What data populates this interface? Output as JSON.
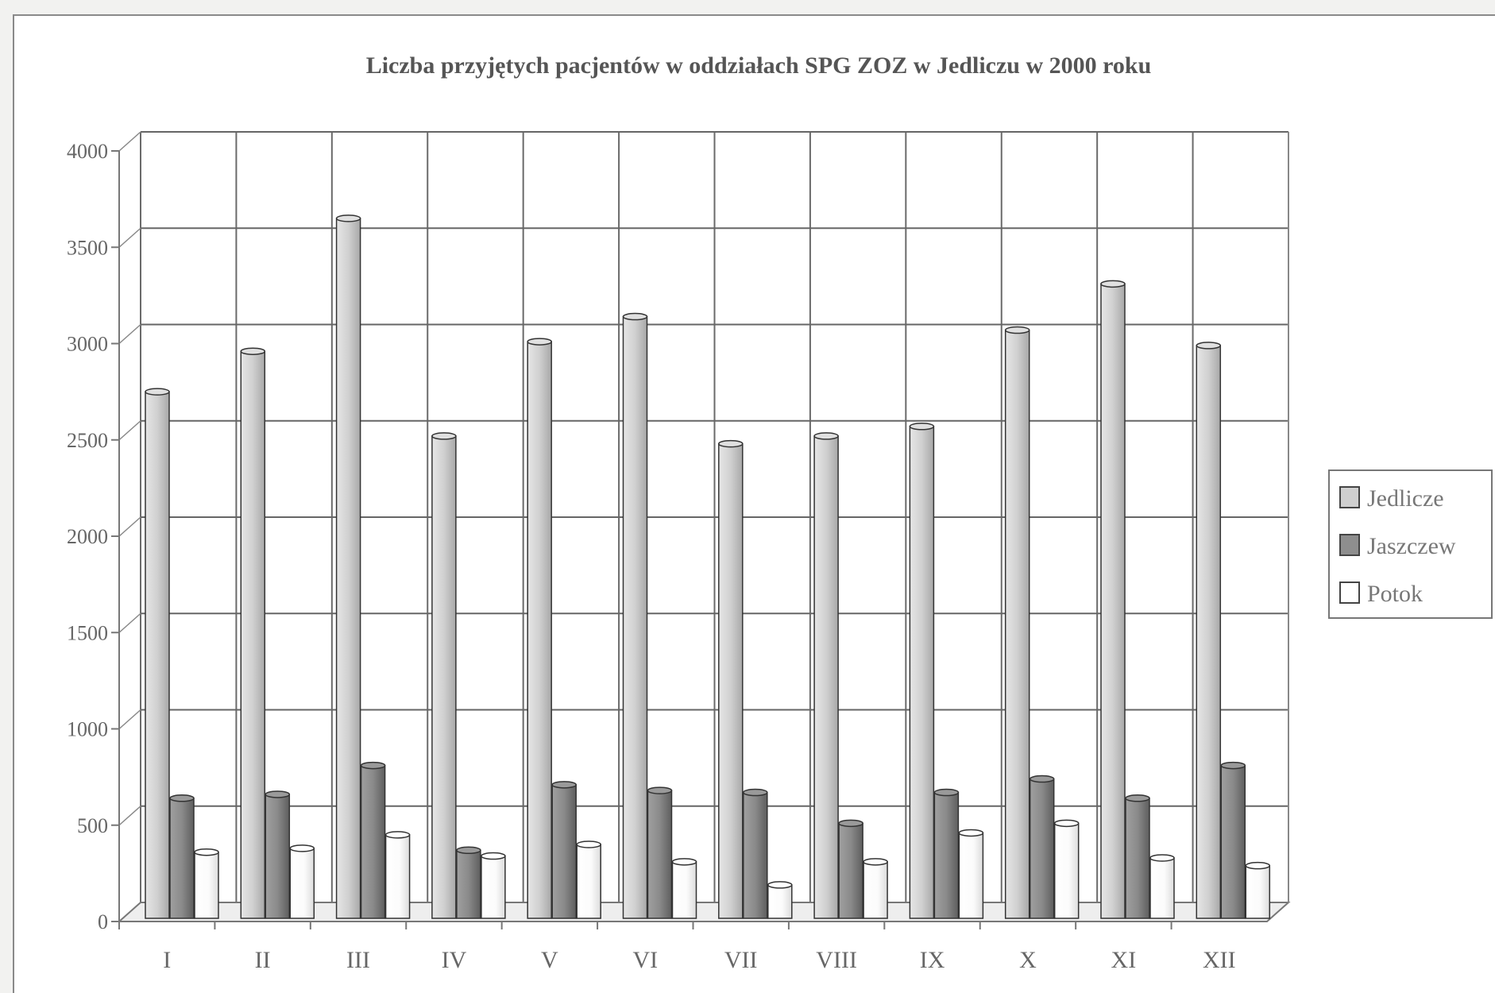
{
  "chart_data": {
    "type": "bar",
    "title": "Liczba przyjętych pacjentów w oddziałach SPG ZOZ w Jedliczu w 2000 roku",
    "xlabel": "",
    "ylabel": "",
    "ylim": [
      0,
      4000
    ],
    "yticks": [
      "0",
      "500",
      "1000",
      "1500",
      "2000",
      "2500",
      "3000",
      "3500",
      "4000"
    ],
    "grid": true,
    "legend_position": "right",
    "categories": [
      "I",
      "II",
      "III",
      "IV",
      "V",
      "VI",
      "VII",
      "VIII",
      "IX",
      "X",
      "XI",
      "XII"
    ],
    "series": [
      {
        "name": "Jedlicze",
        "color": "#cfcfcf",
        "values": [
          2750,
          2960,
          3650,
          2520,
          3010,
          3140,
          2480,
          2520,
          2570,
          3070,
          3310,
          2990
        ]
      },
      {
        "name": "Jaszczew",
        "color": "#8e8e8e",
        "values": [
          640,
          660,
          810,
          370,
          710,
          680,
          670,
          510,
          670,
          740,
          640,
          810
        ]
      },
      {
        "name": "Potok",
        "color": "#ffffff",
        "values": [
          360,
          380,
          450,
          340,
          400,
          310,
          190,
          310,
          460,
          510,
          330,
          290
        ]
      }
    ]
  }
}
